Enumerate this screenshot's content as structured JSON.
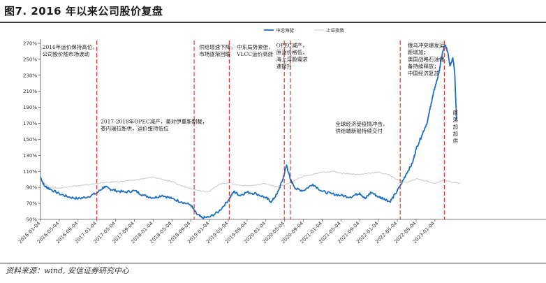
{
  "title": "图7. 2016 年以来公司股价复盘",
  "source": "资料来源：wind, 安信证券研究中心",
  "chart_data": {
    "type": "line",
    "y_ticks": [
      "50%",
      "70%",
      "90%",
      "110%",
      "130%",
      "150%",
      "170%",
      "190%",
      "210%",
      "230%",
      "250%",
      "270%"
    ],
    "ylim": [
      50,
      270
    ],
    "x_ticks": [
      "2016-01-04",
      "2016-05-04",
      "2016-09-04",
      "2017-01-04",
      "2017-05-04",
      "2017-09-04",
      "2018-01-04",
      "2018-05-04",
      "2018-09-04",
      "2019-01-04",
      "2019-05-04",
      "2019-09-04",
      "2020-01-04",
      "2020-05-04",
      "2020-09-04",
      "2021-01-04",
      "2021-05-04",
      "2021-09-04",
      "2022-01-04",
      "2022-05-04",
      "2022-09-04",
      "2023-01-04"
    ],
    "legend_position": "top-right",
    "series": [
      {
        "name": "中远海能",
        "color": "#1f6fbf",
        "points": [
          [
            0,
            103
          ],
          [
            0.2,
            92
          ],
          [
            0.5,
            88
          ],
          [
            1,
            82
          ],
          [
            1.5,
            78
          ],
          [
            2,
            76
          ],
          [
            2.5,
            78
          ],
          [
            3,
            83
          ],
          [
            3.4,
            91
          ],
          [
            3.7,
            88
          ],
          [
            4,
            86
          ],
          [
            4.5,
            84
          ],
          [
            5,
            86
          ],
          [
            5.5,
            80
          ],
          [
            6,
            77
          ],
          [
            6.5,
            80
          ],
          [
            7,
            76
          ],
          [
            7.5,
            72
          ],
          [
            8,
            68
          ],
          [
            8.3,
            57
          ],
          [
            8.6,
            52
          ],
          [
            9,
            53
          ],
          [
            9.5,
            60
          ],
          [
            10,
            74
          ],
          [
            10.3,
            85
          ],
          [
            10.6,
            80
          ],
          [
            11,
            84
          ],
          [
            11.5,
            82
          ],
          [
            12,
            77
          ],
          [
            12.3,
            72
          ],
          [
            12.6,
            82
          ],
          [
            12.9,
            100
          ],
          [
            13.1,
            118
          ],
          [
            13.3,
            100
          ],
          [
            13.6,
            88
          ],
          [
            14,
            86
          ],
          [
            14.5,
            94
          ],
          [
            15,
            85
          ],
          [
            15.5,
            82
          ],
          [
            16,
            80
          ],
          [
            16.5,
            78
          ],
          [
            17,
            83
          ],
          [
            17.3,
            76
          ],
          [
            17.6,
            84
          ],
          [
            18,
            78
          ],
          [
            18.3,
            76
          ],
          [
            18.6,
            72
          ],
          [
            18.9,
            82
          ],
          [
            19.2,
            94
          ],
          [
            19.5,
            108
          ],
          [
            19.8,
            120
          ],
          [
            20,
            138
          ],
          [
            20.3,
            155
          ],
          [
            20.6,
            172
          ],
          [
            20.8,
            195
          ],
          [
            21,
            215
          ],
          [
            21.2,
            232
          ],
          [
            21.4,
            258
          ],
          [
            21.55,
            268
          ],
          [
            21.7,
            258
          ],
          [
            21.8,
            242
          ],
          [
            21.95,
            252
          ],
          [
            22.05,
            235
          ],
          [
            22.15,
            175
          ]
        ]
      },
      {
        "name": "上证指数",
        "color": "#c8c8c8",
        "points": [
          [
            0,
            99
          ],
          [
            0.5,
            90
          ],
          [
            1,
            89
          ],
          [
            1.5,
            91
          ],
          [
            2,
            92
          ],
          [
            2.5,
            93
          ],
          [
            3,
            95
          ],
          [
            3.5,
            96
          ],
          [
            4,
            97
          ],
          [
            4.5,
            98
          ],
          [
            5,
            99
          ],
          [
            5.5,
            101
          ],
          [
            6,
            103
          ],
          [
            6.5,
            100
          ],
          [
            7,
            97
          ],
          [
            7.5,
            92
          ],
          [
            8,
            89
          ],
          [
            8.5,
            86
          ],
          [
            9,
            85
          ],
          [
            9.5,
            94
          ],
          [
            10,
            96
          ],
          [
            10.5,
            93
          ],
          [
            11,
            92
          ],
          [
            11.5,
            93
          ],
          [
            12,
            95
          ],
          [
            12.5,
            91
          ],
          [
            13,
            93
          ],
          [
            13.5,
            98
          ],
          [
            14,
            104
          ],
          [
            14.5,
            106
          ],
          [
            15,
            109
          ],
          [
            15.5,
            110
          ],
          [
            16,
            108
          ],
          [
            16.5,
            107
          ],
          [
            17,
            106
          ],
          [
            17.5,
            108
          ],
          [
            18,
            109
          ],
          [
            18.5,
            106
          ],
          [
            19,
            100
          ],
          [
            19.5,
            96
          ],
          [
            20,
            101
          ],
          [
            20.5,
            98
          ],
          [
            21,
            95
          ],
          [
            21.5,
            99
          ],
          [
            22,
            96
          ],
          [
            22.3,
            95
          ]
        ]
      }
    ],
    "event_lines_x": [
      3.0,
      8.18,
      10.05,
      12.98,
      13.3,
      19.15,
      21.5
    ],
    "annotations": [
      {
        "lines": [
          "2016年运价保持高位，",
          "公司股价随市场波动"
        ],
        "x": 0.1,
        "y": 263
      },
      {
        "lines": [
          "2017-2018年OPEC减产，美对伊重新制裁，",
          "委内瑞拉断供，运价维持低位"
        ],
        "x": 3.2,
        "y": 170
      },
      {
        "lines": [
          "供给增速下降，",
          "市场逐渐回暖"
        ],
        "x": 8.45,
        "y": 263
      },
      {
        "lines": [
          "中东局势紧张，",
          "VLCC运价高涨"
        ],
        "x": 10.45,
        "y": 263
      },
      {
        "lines": [
          "OPEC减产，",
          "原油价格低，",
          "海上浮舱需求",
          "速提升"
        ],
        "x": 12.55,
        "y": 265
      },
      {
        "lines": [
          "全球经济受疫情冲击，",
          "供给端新船持续交付"
        ],
        "x": 15.7,
        "y": 167
      },
      {
        "lines": [
          "俄乌冲突爆发运",
          "距增加；",
          "美国战略石油储",
          "备持续释放；",
          "中国经济复苏"
        ],
        "x": 19.55,
        "y": 265
      },
      {
        "lines": [
          "原",
          "落",
          "加",
          "加",
          "供"
        ],
        "x": 21.95,
        "y": 181
      }
    ]
  }
}
